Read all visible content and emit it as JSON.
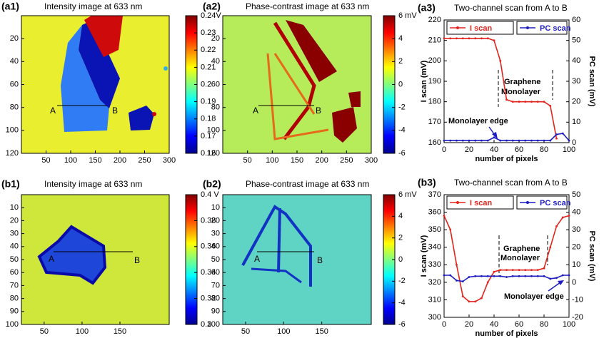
{
  "chart_data": [
    {
      "type": "image",
      "label": "(a1)",
      "title": "Intensity image at 633 nm",
      "xlim": [
        0,
        300
      ],
      "xticks": [
        50,
        100,
        150,
        200,
        250,
        300
      ],
      "ylim": [
        0,
        120
      ],
      "yticks": [
        20,
        40,
        60,
        80,
        100,
        120
      ],
      "clim": [
        0.16,
        0.24
      ],
      "cticks": [
        0.16,
        0.17,
        0.18,
        0.19,
        0.2,
        0.21,
        0.22,
        0.23,
        {
          "value": 0.24,
          "label": "0.24V"
        }
      ],
      "colormap": "jet",
      "annotations": [
        "A",
        "B"
      ]
    },
    {
      "type": "image",
      "label": "(a2)",
      "title": "Phase-contrast image at 633 nm",
      "xlim": [
        0,
        300
      ],
      "xticks": [
        50,
        100,
        150,
        200,
        250,
        300
      ],
      "ylim": [
        0,
        120
      ],
      "yticks": [
        20,
        40,
        60,
        80,
        100,
        120
      ],
      "clim": [
        -6,
        6
      ],
      "cticks": [
        -6,
        -4,
        -2,
        0,
        2,
        4,
        {
          "value": 6,
          "label": "6 mV"
        }
      ],
      "colormap": "jet",
      "annotations": [
        "A",
        "B"
      ]
    },
    {
      "type": "line",
      "label": "(a3)",
      "title": "Two-channel scan from A to B",
      "x": [
        0,
        5,
        10,
        15,
        20,
        25,
        30,
        35,
        40,
        45,
        50,
        55,
        60,
        65,
        70,
        75,
        80,
        85,
        90,
        95,
        100
      ],
      "series": [
        {
          "name": "I scan",
          "color": "#e3231c",
          "values": [
            211,
            211,
            211,
            211,
            211,
            211,
            211,
            211,
            210,
            200,
            181,
            180,
            180,
            180,
            180,
            180,
            180,
            178,
            162,
            null,
            null
          ]
        },
        {
          "name": "PC scan",
          "color": "#1c1cc0",
          "axis": "y2",
          "values": [
            1,
            1,
            1,
            1,
            1,
            1,
            1,
            1,
            2.5,
            1,
            1,
            1,
            1,
            1,
            1,
            1,
            1,
            1,
            4,
            4.5,
            1
          ]
        }
      ],
      "xlim": [
        0,
        100
      ],
      "xticks": [
        0,
        20,
        40,
        60,
        80,
        100
      ],
      "ylim": [
        160,
        220
      ],
      "yticks": [
        160,
        170,
        180,
        190,
        200,
        210,
        220
      ],
      "y2lim": [
        0,
        60
      ],
      "y2ticks": [
        0,
        10,
        20,
        30,
        40,
        50,
        60
      ],
      "xlabel": "number of pixels",
      "ylabel": "I scan (mV)",
      "y2label": "PC scan (mV)",
      "annotations": [
        "Graphene",
        "Monolayer",
        "Monolayer edge"
      ]
    },
    {
      "type": "image",
      "label": "(b1)",
      "title": "Intensity image at 633 nm",
      "xlim": [
        20,
        215
      ],
      "xticks": [
        50,
        100,
        150
      ],
      "ylim": [
        0,
        100
      ],
      "yticks": [
        10,
        20,
        30,
        40,
        50,
        60,
        70,
        80,
        90,
        100
      ],
      "clim": [
        0.3,
        0.4
      ],
      "cticks": [
        0.3,
        0.32,
        0.34,
        0.36,
        0.38,
        {
          "value": 0.4,
          "label": "0.4 V"
        }
      ],
      "colormap": "jet",
      "annotations": [
        "A",
        "B"
      ]
    },
    {
      "type": "image",
      "label": "(b2)",
      "title": "Phase-contrast image at 633 nm",
      "xlim": [
        20,
        215
      ],
      "xticks": [
        50,
        100,
        150
      ],
      "ylim": [
        0,
        100
      ],
      "yticks": [
        10,
        20,
        30,
        40,
        50,
        60,
        70,
        80,
        90,
        100
      ],
      "clim": [
        -6,
        6
      ],
      "cticks": [
        -6,
        -4,
        -2,
        0,
        2,
        4,
        {
          "value": 6,
          "label": "6 mV"
        }
      ],
      "colormap": "jet",
      "annotations": [
        "A",
        "B"
      ]
    },
    {
      "type": "line",
      "label": "(b3)",
      "title": "Two-channel scan from A to B",
      "x": [
        0,
        5,
        10,
        15,
        20,
        25,
        30,
        35,
        40,
        45,
        50,
        55,
        60,
        65,
        70,
        75,
        80,
        85,
        90,
        95,
        100
      ],
      "series": [
        {
          "name": "I scan",
          "color": "#e3231c",
          "values": [
            358,
            350,
            330,
            312,
            309,
            309,
            311,
            320,
            326,
            327,
            327,
            327,
            327,
            327,
            327,
            327,
            328,
            340,
            352,
            357,
            358
          ]
        },
        {
          "name": "PC scan",
          "color": "#1c1cc0",
          "axis": "y2",
          "values": [
            4,
            4,
            1,
            0.5,
            3,
            3.5,
            3.5,
            3.5,
            3.5,
            3.5,
            3,
            3.5,
            3.5,
            3.5,
            3.5,
            3.5,
            3.5,
            2,
            2.5,
            4,
            4
          ]
        }
      ],
      "xlim": [
        0,
        100
      ],
      "xticks": [
        0,
        20,
        40,
        60,
        80,
        100
      ],
      "ylim": [
        300,
        370
      ],
      "yticks": [
        300,
        310,
        320,
        330,
        340,
        350,
        360,
        370
      ],
      "y2lim": [
        -20,
        50
      ],
      "y2ticks": [
        -20,
        -10,
        0,
        10,
        20,
        30,
        40,
        50
      ],
      "xlabel": "number of pixels",
      "ylabel": "I scan (mV)",
      "y2label": "PC scan (mV)",
      "annotations": [
        "Graphene",
        "Monolayer",
        "Monolayer edge"
      ]
    }
  ]
}
